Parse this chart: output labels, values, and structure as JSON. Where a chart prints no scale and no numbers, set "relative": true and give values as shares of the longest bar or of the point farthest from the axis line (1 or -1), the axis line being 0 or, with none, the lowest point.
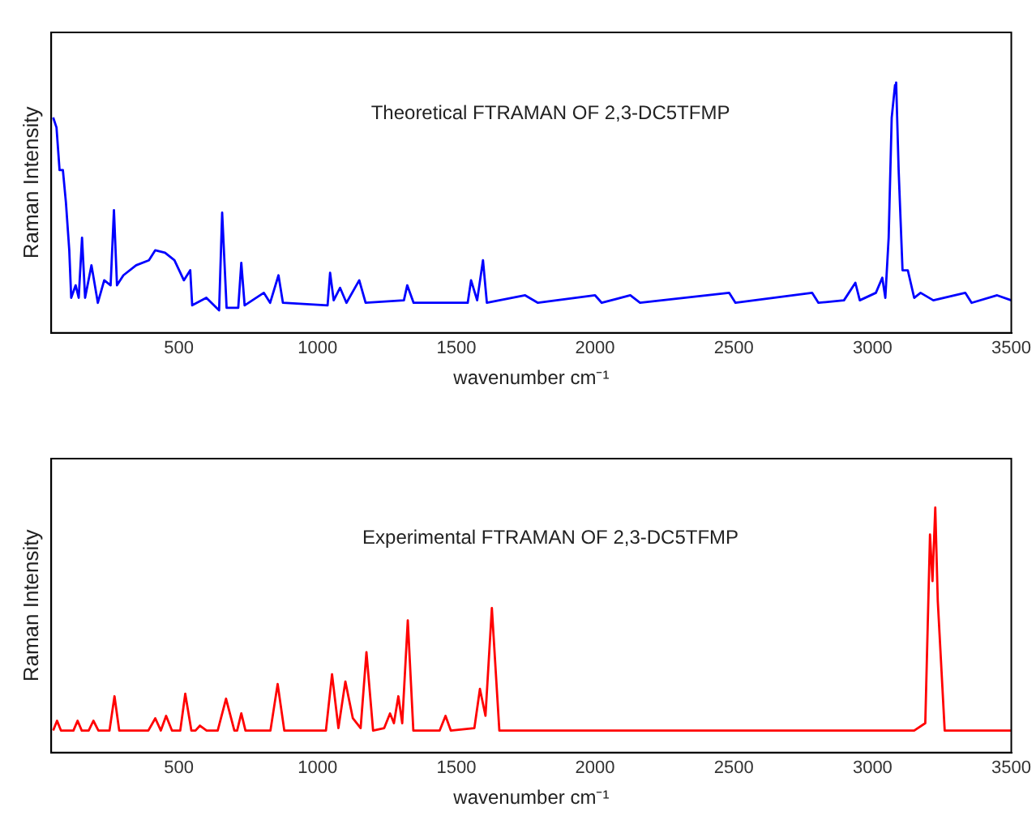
{
  "chart_data": [
    {
      "type": "line",
      "title": "Theoretical FTRAMAN OF 2,3-DC5TFMP",
      "xlabel": "wavenumber cm⁻¹",
      "ylabel": "Raman Intensity",
      "relative": true,
      "xlim": [
        40,
        3500
      ],
      "xticks": [
        500,
        1000,
        1500,
        2000,
        2500,
        3000,
        3500
      ],
      "grid": false,
      "legend": false,
      "marker": "none",
      "series": [
        {
          "color": "#0000ff",
          "x": [
            47,
            59,
            70,
            82,
            93,
            105,
            112,
            128,
            139,
            151,
            162,
            185,
            208,
            231,
            254,
            266,
            277,
            300,
            346,
            392,
            415,
            450,
            484,
            518,
            541,
            548,
            599,
            645,
            656,
            672,
            714,
            725,
            737,
            806,
            829,
            859,
            875,
            1036,
            1045,
            1058,
            1081,
            1104,
            1150,
            1173,
            1311,
            1323,
            1346,
            1541,
            1553,
            1575,
            1596,
            1610,
            1748,
            1794,
            2000,
            2024,
            2127,
            2162,
            2483,
            2506,
            2782,
            2805,
            2897,
            2938,
            2954,
            3012,
            3035,
            3046,
            3058,
            3069,
            3081,
            3085,
            3094,
            3108,
            3127,
            3150,
            3173,
            3219,
            3334,
            3357,
            3449,
            3500
          ],
          "values": [
            0.86,
            0.82,
            0.65,
            0.65,
            0.52,
            0.33,
            0.14,
            0.19,
            0.14,
            0.38,
            0.14,
            0.27,
            0.12,
            0.21,
            0.19,
            0.49,
            0.19,
            0.23,
            0.27,
            0.29,
            0.33,
            0.32,
            0.29,
            0.21,
            0.25,
            0.11,
            0.14,
            0.09,
            0.48,
            0.1,
            0.1,
            0.28,
            0.11,
            0.16,
            0.12,
            0.23,
            0.12,
            0.11,
            0.24,
            0.13,
            0.18,
            0.12,
            0.21,
            0.12,
            0.13,
            0.19,
            0.12,
            0.12,
            0.21,
            0.13,
            0.29,
            0.12,
            0.15,
            0.12,
            0.15,
            0.12,
            0.15,
            0.12,
            0.16,
            0.12,
            0.16,
            0.12,
            0.13,
            0.2,
            0.13,
            0.16,
            0.22,
            0.14,
            0.38,
            0.86,
            0.99,
            1,
            0.65,
            0.25,
            0.25,
            0.14,
            0.16,
            0.13,
            0.16,
            0.12,
            0.15,
            0.13
          ]
        }
      ]
    },
    {
      "type": "line",
      "title": "Experimental FTRAMAN OF 2,3-DC5TFMP",
      "xlabel": "wavenumber cm⁻¹",
      "ylabel": "Raman Intensity",
      "relative": true,
      "xlim": [
        40,
        3500
      ],
      "xticks": [
        500,
        1000,
        1500,
        2000,
        2500,
        3000,
        3500
      ],
      "grid": false,
      "legend": false,
      "marker": "none",
      "series": [
        {
          "color": "#ff0000",
          "x": [
            47,
            61,
            75,
            120,
            135,
            150,
            175,
            192,
            210,
            250,
            268,
            285,
            390,
            415,
            435,
            454,
            475,
            505,
            523,
            545,
            560,
            576,
            600,
            640,
            670,
            700,
            710,
            725,
            740,
            830,
            856,
            880,
            1030,
            1052,
            1075,
            1100,
            1127,
            1155,
            1176,
            1200,
            1240,
            1261,
            1275,
            1291,
            1305,
            1325,
            1345,
            1440,
            1461,
            1480,
            1565,
            1585,
            1605,
            1628,
            1655,
            3150,
            3190,
            3207,
            3216,
            3226,
            3235,
            3260,
            3500
          ],
          "values": [
            0.09,
            0.13,
            0.09,
            0.09,
            0.13,
            0.09,
            0.09,
            0.13,
            0.09,
            0.09,
            0.23,
            0.09,
            0.09,
            0.14,
            0.09,
            0.15,
            0.09,
            0.09,
            0.24,
            0.09,
            0.09,
            0.11,
            0.09,
            0.09,
            0.22,
            0.09,
            0.09,
            0.16,
            0.09,
            0.09,
            0.28,
            0.09,
            0.09,
            0.32,
            0.1,
            0.29,
            0.14,
            0.1,
            0.41,
            0.09,
            0.1,
            0.16,
            0.12,
            0.23,
            0.12,
            0.54,
            0.09,
            0.09,
            0.15,
            0.09,
            0.1,
            0.26,
            0.15,
            0.59,
            0.09,
            0.09,
            0.12,
            0.89,
            0.7,
            1,
            0.62,
            0.09,
            0.09
          ]
        }
      ]
    }
  ]
}
